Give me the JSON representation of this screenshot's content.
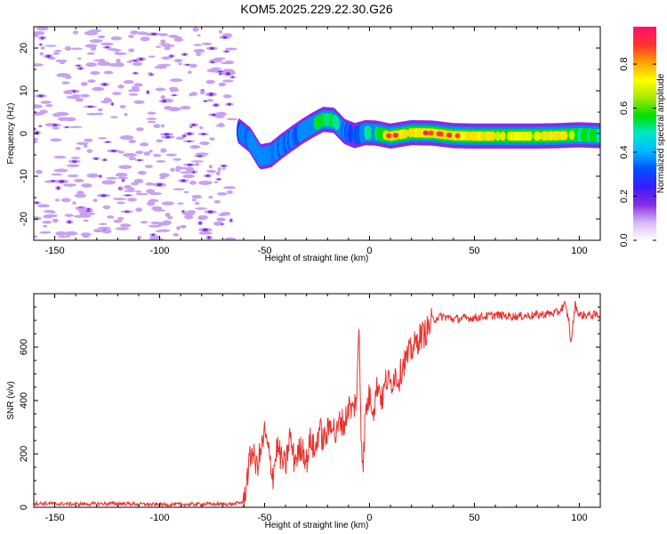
{
  "figure_title": "KOM5.2025.229.22.30.G26",
  "colors": {
    "line": "#e8332e",
    "axes": "#000000",
    "scatter_noise": "#c9a0f2",
    "scatter_noise_dark": "#7a2de0"
  },
  "chart_data": [
    {
      "type": "heatmap",
      "name": "spectrogram",
      "title": "KOM5.2025.229.22.30.G26",
      "xlabel": "Height of straight line (km)",
      "ylabel": "Frequency (Hz)",
      "xlim": [
        -160,
        110
      ],
      "ylim": [
        -25,
        25
      ],
      "xticks": [
        -150,
        -100,
        -50,
        0,
        50,
        100
      ],
      "yticks": [
        -20,
        -10,
        0,
        10,
        20
      ],
      "colorbar": {
        "label": "Normalized spectral amplitude",
        "range": [
          0,
          0.97
        ],
        "ticks": [
          0.0,
          0.2,
          0.4,
          0.6,
          0.8
        ],
        "colormap": [
          "#ffffff",
          "#d8b8f8",
          "#8a2be2",
          "#3a1aff",
          "#0050ff",
          "#00b8ff",
          "#00e8c8",
          "#00e000",
          "#a8e800",
          "#ffff00",
          "#ffa000",
          "#ff3030",
          "#ff1070"
        ]
      },
      "ridge": {
        "description": "dominant frequency vs height",
        "x": [
          -62,
          -57,
          -52,
          -47,
          -42,
          -37,
          -32,
          -27,
          -22,
          -17,
          -12,
          -7,
          -2,
          3,
          10,
          20,
          30,
          40,
          50,
          60,
          70,
          80,
          90,
          100,
          110
        ],
        "y": [
          0.5,
          -1.5,
          -5.5,
          -5,
          -3,
          -1.2,
          0.5,
          2,
          3.3,
          3.1,
          0.5,
          -0.5,
          0.2,
          0.1,
          -0.6,
          0.2,
          0.1,
          -0.5,
          -0.6,
          -0.6,
          -0.6,
          -0.6,
          -0.5,
          -0.3,
          -0.5
        ],
        "amplitude": [
          0.35,
          0.4,
          0.45,
          0.42,
          0.38,
          0.35,
          0.4,
          0.45,
          0.55,
          0.5,
          0.35,
          0.3,
          0.45,
          0.5,
          0.85,
          0.75,
          0.85,
          0.8,
          0.75,
          0.7,
          0.7,
          0.7,
          0.8,
          0.6,
          0.55
        ]
      },
      "noise_region_x": [
        -160,
        -65
      ]
    },
    {
      "type": "line",
      "name": "snr",
      "xlabel": "Height of straight line (km)",
      "ylabel": "SNR (v/v)",
      "xlim": [
        -160,
        110
      ],
      "ylim": [
        0,
        800
      ],
      "xticks": [
        -150,
        -100,
        -50,
        0,
        50,
        100
      ],
      "yticks": [
        0,
        200,
        400,
        600
      ],
      "series": [
        {
          "name": "SNR",
          "x": [
            -160,
            -140,
            -120,
            -100,
            -80,
            -65,
            -60,
            -58,
            -56,
            -54,
            -52,
            -50,
            -48,
            -46,
            -44,
            -42,
            -40,
            -38,
            -36,
            -34,
            -32,
            -30,
            -28,
            -26,
            -24,
            -22,
            -20,
            -18,
            -16,
            -14,
            -12,
            -10,
            -8,
            -6,
            -5,
            -4,
            -3,
            -2,
            0,
            2,
            4,
            6,
            8,
            10,
            12,
            14,
            16,
            18,
            20,
            22,
            24,
            26,
            28,
            30,
            32,
            35,
            40,
            50,
            60,
            70,
            80,
            90,
            93,
            95,
            96,
            98,
            100,
            110
          ],
          "y": [
            15,
            12,
            14,
            10,
            12,
            12,
            20,
            130,
            220,
            150,
            200,
            280,
            200,
            120,
            230,
            180,
            150,
            270,
            180,
            200,
            230,
            170,
            260,
            200,
            300,
            250,
            280,
            330,
            260,
            330,
            310,
            380,
            360,
            420,
            680,
            280,
            160,
            350,
            420,
            370,
            470,
            400,
            480,
            460,
            500,
            480,
            540,
            560,
            590,
            610,
            640,
            650,
            670,
            700,
            710,
            715,
            705,
            710,
            720,
            715,
            720,
            730,
            760,
            700,
            610,
            760,
            720,
            720
          ]
        }
      ]
    }
  ]
}
